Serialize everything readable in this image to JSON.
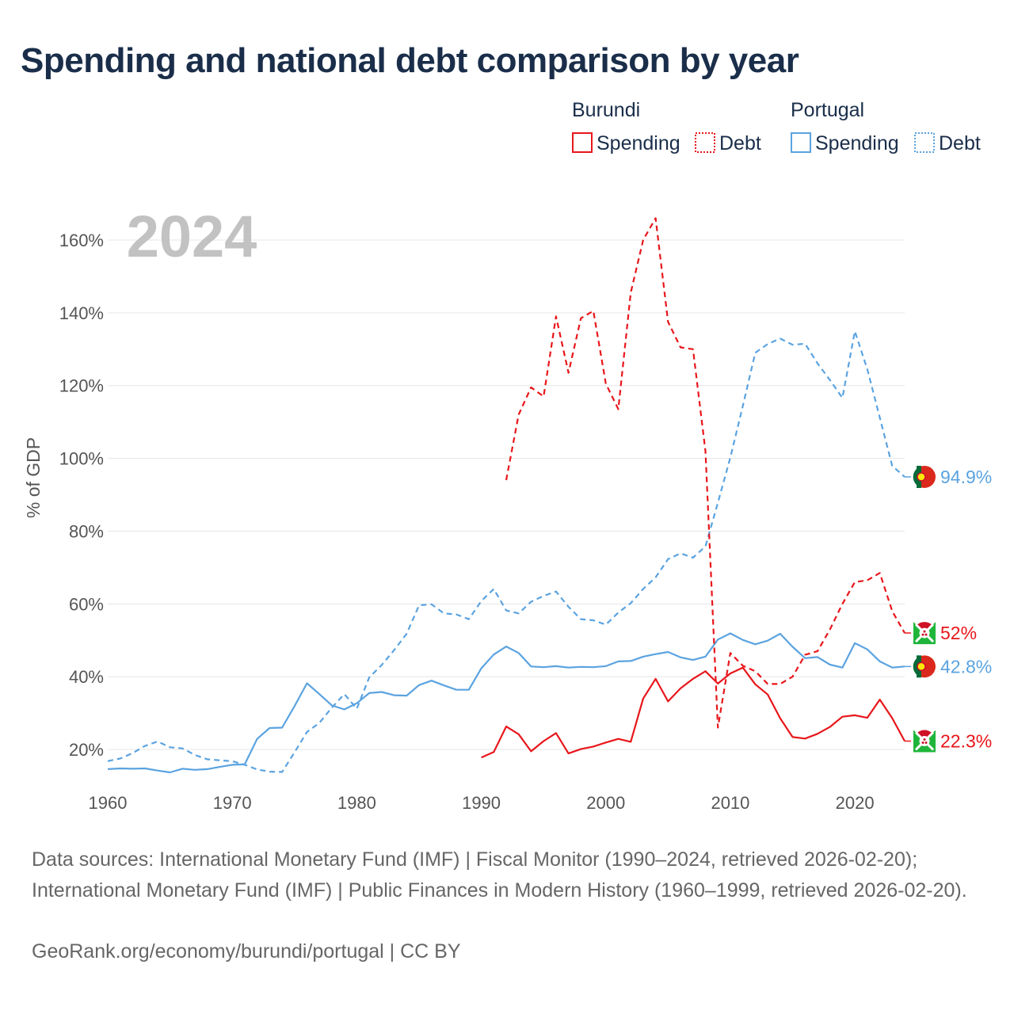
{
  "title": "Spending and national debt comparison by year",
  "year_label": "2024",
  "footer": {
    "sources": "Data sources: International Monetary Fund (IMF) | Fiscal Monitor (1990–2024, retrieved 2026-02-20); International Monetary Fund (IMF) | Public Finances in Modern History (1960–1999, retrieved 2026-02-20).",
    "credit": "GeoRank.org/economy/burundi/portugal | CC BY"
  },
  "legend": {
    "groups": [
      {
        "country": "Burundi",
        "items": [
          {
            "label": "Spending",
            "style": "solid"
          },
          {
            "label": "Debt",
            "style": "dotted"
          }
        ],
        "color": "#e8161b"
      },
      {
        "country": "Portugal",
        "items": [
          {
            "label": "Spending",
            "style": "solid"
          },
          {
            "label": "Debt",
            "style": "dotted"
          }
        ],
        "color": "#5ba3e0"
      }
    ]
  },
  "colors": {
    "burundi": "#e8161b",
    "portugal": "#5ba3e0"
  },
  "chart_data": {
    "type": "line",
    "ylabel": "% of GDP",
    "xlim": [
      1960,
      2024
    ],
    "ylim": [
      10,
      170
    ],
    "xticks": [
      1960,
      1970,
      1980,
      1990,
      2000,
      2010,
      2020
    ],
    "yticks": [
      20,
      40,
      60,
      80,
      100,
      120,
      140,
      160
    ],
    "ytick_labels": [
      "20%",
      "40%",
      "60%",
      "80%",
      "100%",
      "120%",
      "140%",
      "160%"
    ],
    "grid": true,
    "series": [
      {
        "name": "Portugal Spending",
        "country": "Portugal",
        "metric": "Spending",
        "dash": "solid",
        "color": "#5ba3e0",
        "end_label": "42.8%",
        "x": [
          1960,
          1961,
          1962,
          1963,
          1964,
          1965,
          1966,
          1967,
          1968,
          1969,
          1970,
          1971,
          1972,
          1973,
          1974,
          1975,
          1976,
          1977,
          1978,
          1979,
          1980,
          1981,
          1982,
          1983,
          1984,
          1985,
          1986,
          1987,
          1988,
          1989,
          1990,
          1991,
          1992,
          1993,
          1994,
          1995,
          1996,
          1997,
          1998,
          1999,
          2000,
          2001,
          2002,
          2003,
          2004,
          2005,
          2006,
          2007,
          2008,
          2009,
          2010,
          2011,
          2012,
          2013,
          2014,
          2015,
          2016,
          2017,
          2018,
          2019,
          2020,
          2021,
          2022,
          2023,
          2024
        ],
        "y": [
          14.6,
          14.8,
          14.7,
          14.8,
          14.2,
          13.7,
          14.7,
          14.4,
          14.6,
          15.2,
          15.8,
          15.9,
          22.9,
          25.9,
          26.0,
          31.9,
          38.2,
          35.2,
          32.1,
          31.0,
          32.7,
          35.5,
          35.8,
          34.9,
          34.8,
          37.7,
          38.9,
          37.6,
          36.4,
          36.4,
          42.3,
          46.1,
          48.3,
          46.5,
          42.8,
          42.6,
          42.9,
          42.5,
          42.7,
          42.6,
          42.9,
          44.2,
          44.3,
          45.5,
          46.2,
          46.8,
          45.3,
          44.6,
          45.5,
          50.2,
          51.9,
          50.1,
          48.9,
          49.9,
          51.8,
          48.2,
          45.1,
          45.4,
          43.3,
          42.5,
          49.2,
          47.5,
          44.2,
          42.5,
          42.8
        ]
      },
      {
        "name": "Portugal Debt",
        "country": "Portugal",
        "metric": "Debt",
        "dash": "dashed",
        "color": "#5ba3e0",
        "end_label": "94.9%",
        "x": [
          1960,
          1961,
          1962,
          1963,
          1964,
          1965,
          1966,
          1967,
          1968,
          1969,
          1970,
          1971,
          1972,
          1973,
          1974,
          1975,
          1976,
          1977,
          1978,
          1979,
          1980,
          1981,
          1982,
          1983,
          1984,
          1985,
          1986,
          1987,
          1988,
          1989,
          1990,
          1991,
          1992,
          1993,
          1994,
          1995,
          1996,
          1997,
          1998,
          1999,
          2000,
          2001,
          2002,
          2003,
          2004,
          2005,
          2006,
          2007,
          2008,
          2009,
          2010,
          2011,
          2012,
          2013,
          2014,
          2015,
          2016,
          2017,
          2018,
          2019,
          2020,
          2021,
          2022,
          2023,
          2024
        ],
        "y": [
          16.8,
          17.5,
          19.0,
          21.0,
          22.2,
          20.6,
          20.3,
          18.5,
          17.3,
          17.0,
          16.8,
          15.8,
          14.5,
          13.9,
          13.8,
          19.2,
          24.8,
          27.3,
          31.5,
          35.2,
          31.2,
          39.8,
          43.2,
          47.3,
          51.8,
          59.6,
          59.9,
          57.4,
          57.1,
          55.8,
          60.8,
          64.1,
          58.2,
          57.4,
          60.6,
          62.2,
          63.4,
          59.2,
          55.8,
          55.5,
          54.3,
          57.6,
          60.2,
          64.1,
          67.3,
          72.3,
          73.9,
          72.7,
          75.8,
          87.8,
          100.2,
          114.4,
          129.0,
          131.4,
          132.9,
          131.2,
          131.5,
          126.1,
          121.5,
          116.6,
          134.9,
          124.5,
          111.2,
          97.9,
          94.9
        ]
      },
      {
        "name": "Burundi Spending",
        "country": "Burundi",
        "metric": "Spending",
        "dash": "solid",
        "color": "#e8161b",
        "end_label": "22.3%",
        "x": [
          1990,
          1991,
          1992,
          1993,
          1994,
          1995,
          1996,
          1997,
          1998,
          1999,
          2000,
          2001,
          2002,
          2003,
          2004,
          2005,
          2006,
          2007,
          2008,
          2009,
          2010,
          2011,
          2012,
          2013,
          2014,
          2015,
          2016,
          2017,
          2018,
          2019,
          2020,
          2021,
          2022,
          2023,
          2024
        ],
        "y": [
          17.8,
          19.3,
          26.3,
          24.2,
          19.5,
          22.3,
          24.5,
          18.9,
          20.1,
          20.8,
          21.9,
          22.9,
          22.1,
          34.0,
          39.4,
          33.2,
          36.8,
          39.4,
          41.5,
          38.1,
          40.9,
          42.5,
          37.9,
          35.1,
          28.6,
          23.4,
          23.0,
          24.3,
          26.2,
          29.0,
          29.4,
          28.7,
          33.7,
          28.6,
          22.3
        ]
      },
      {
        "name": "Burundi Debt",
        "country": "Burundi",
        "metric": "Debt",
        "dash": "dashed",
        "color": "#e8161b",
        "end_label": "52%",
        "x": [
          1992,
          1993,
          1994,
          1995,
          1996,
          1997,
          1998,
          1999,
          2000,
          2001,
          2002,
          2003,
          2004,
          2005,
          2006,
          2007,
          2008,
          2009,
          2010,
          2011,
          2012,
          2013,
          2014,
          2015,
          2016,
          2017,
          2018,
          2019,
          2020,
          2021,
          2022,
          2023,
          2024
        ],
        "y": [
          94.0,
          112.0,
          119.5,
          117.0,
          139.0,
          123.5,
          138.5,
          140.5,
          120.5,
          113.5,
          145.5,
          160.0,
          166.0,
          137.5,
          130.5,
          130.0,
          102.0,
          26.0,
          46.5,
          43.0,
          41.5,
          38.0,
          38.0,
          40.0,
          46.0,
          47.0,
          53.0,
          60.0,
          66.0,
          66.5,
          68.5,
          58.0,
          52.0
        ]
      }
    ]
  }
}
